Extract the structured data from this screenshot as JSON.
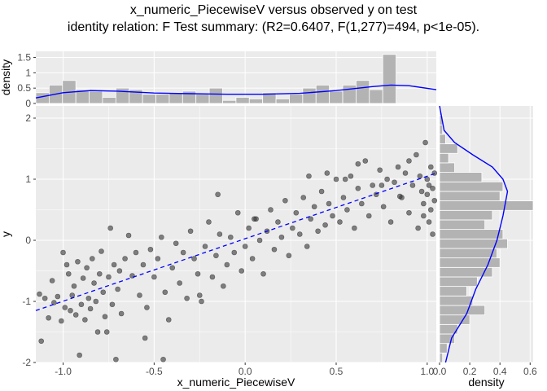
{
  "title": "x_numeric_PiecewiseV versus observed y on test",
  "subtitle": "identity relation: F Test summary: (R2=0.6407, F(1,277)=494, p<1e-05).",
  "chart_data": {
    "type": "scatter",
    "xlabel": "x_numeric_PiecewiseV",
    "ylabel": "y",
    "xlim": [
      -1.15,
      1.05
    ],
    "ylim": [
      -2.0,
      2.2
    ],
    "x_ticks": [
      {
        "v": -1.0,
        "label": "-1.0"
      },
      {
        "v": -0.5,
        "label": "-0.5"
      },
      {
        "v": 0.0,
        "label": "0.0"
      },
      {
        "v": 0.5,
        "label": "0.5"
      },
      {
        "v": 1.0,
        "label": "1.0"
      }
    ],
    "y_ticks": [
      {
        "v": -2,
        "label": "-2"
      },
      {
        "v": -1,
        "label": "-1"
      },
      {
        "v": 0,
        "label": "0"
      },
      {
        "v": 1,
        "label": "1"
      },
      {
        "v": 2,
        "label": "2"
      }
    ],
    "fit_line": {
      "x": [
        -1.15,
        1.05
      ],
      "y": [
        -1.15,
        1.1
      ],
      "color": "#0000ff",
      "style": "dashed"
    },
    "point_color": "#333333",
    "top_density": {
      "ylabel": "density",
      "ylim": [
        0,
        1.7
      ],
      "y_ticks": [
        {
          "v": 0,
          "label": "0"
        },
        {
          "v": 0.5,
          "label": "0.5"
        },
        {
          "v": 1.0,
          "label": "1"
        },
        {
          "v": 1.5,
          "label": "1.5"
        }
      ],
      "bin_start": -1.15,
      "bin_width": 0.0733,
      "counts": [
        0.35,
        0.6,
        0.75,
        0.45,
        0.4,
        0.2,
        0.5,
        0.45,
        0.3,
        0.3,
        0.35,
        0.4,
        0.3,
        0.5,
        0.1,
        0.2,
        0.15,
        0.35,
        0.15,
        0.3,
        0.5,
        0.6,
        0.4,
        0.6,
        0.75,
        0.45,
        1.6
      ],
      "curve": [
        [
          -1.15,
          0.18
        ],
        [
          -1.0,
          0.35
        ],
        [
          -0.85,
          0.42
        ],
        [
          -0.7,
          0.4
        ],
        [
          -0.5,
          0.34
        ],
        [
          -0.3,
          0.32
        ],
        [
          -0.1,
          0.3
        ],
        [
          0.1,
          0.3
        ],
        [
          0.3,
          0.33
        ],
        [
          0.5,
          0.42
        ],
        [
          0.7,
          0.55
        ],
        [
          0.8,
          0.6
        ],
        [
          0.9,
          0.58
        ],
        [
          1.05,
          0.45
        ]
      ],
      "color": "#0000ff"
    },
    "right_density": {
      "xlabel": "density",
      "xlim": [
        0,
        0.62
      ],
      "x_ticks": [
        {
          "v": 0,
          "label": "0.0"
        },
        {
          "v": 0.2,
          "label": "0.2"
        },
        {
          "v": 0.4,
          "label": "0.4"
        },
        {
          "v": 0.6,
          "label": "0.6"
        }
      ],
      "bin_start": -2.0,
      "bin_width": 0.1556,
      "counts": [
        0.02,
        0.05,
        0.1,
        0.12,
        0.2,
        0.3,
        0.22,
        0.18,
        0.25,
        0.35,
        0.4,
        0.38,
        0.45,
        0.42,
        0.3,
        0.35,
        0.62,
        0.4,
        0.42,
        0.28,
        0.1,
        0.06,
        0.12,
        0.04,
        0.02,
        0.02,
        0.01
      ],
      "curve": [
        [
          -2.0,
          0.04
        ],
        [
          -1.6,
          0.08
        ],
        [
          -1.2,
          0.18
        ],
        [
          -0.8,
          0.24
        ],
        [
          -0.4,
          0.32
        ],
        [
          0.0,
          0.38
        ],
        [
          0.4,
          0.42
        ],
        [
          0.8,
          0.45
        ],
        [
          1.0,
          0.42
        ],
        [
          1.2,
          0.35
        ],
        [
          1.4,
          0.22
        ],
        [
          1.6,
          0.1
        ],
        [
          1.8,
          0.03
        ],
        [
          2.2,
          0.0
        ]
      ],
      "color": "#0000ff"
    },
    "points": [
      [
        -1.13,
        -0.88
      ],
      [
        -1.12,
        -1.65
      ],
      [
        -1.1,
        -0.95
      ],
      [
        -1.08,
        -1.27
      ],
      [
        -1.06,
        -0.66
      ],
      [
        -1.05,
        -1.02
      ],
      [
        -1.03,
        -0.92
      ],
      [
        -1.01,
        -1.32
      ],
      [
        -1.0,
        -0.2
      ],
      [
        -0.99,
        -1.1
      ],
      [
        -0.98,
        -0.4
      ],
      [
        -0.97,
        -0.55
      ],
      [
        -0.96,
        -1.15
      ],
      [
        -0.95,
        -0.9
      ],
      [
        -0.94,
        -0.75
      ],
      [
        -0.93,
        -1.22
      ],
      [
        -0.92,
        -0.35
      ],
      [
        -0.91,
        -1.88
      ],
      [
        -0.9,
        -1.05
      ],
      [
        -0.89,
        -0.62
      ],
      [
        -0.88,
        -1.3
      ],
      [
        -0.87,
        -0.45
      ],
      [
        -0.86,
        -0.95
      ],
      [
        -0.85,
        -1.12
      ],
      [
        -0.84,
        -0.3
      ],
      [
        -0.83,
        -0.7
      ],
      [
        -0.82,
        -1.0
      ],
      [
        -0.81,
        -1.5
      ],
      [
        -0.8,
        -0.55
      ],
      [
        -0.79,
        -0.18
      ],
      [
        -0.78,
        -0.85
      ],
      [
        -0.77,
        -1.25
      ],
      [
        -0.76,
        -1.5
      ],
      [
        -0.75,
        -0.6
      ],
      [
        -0.74,
        0.2
      ],
      [
        -0.73,
        -1.05
      ],
      [
        -0.72,
        -0.4
      ],
      [
        -0.71,
        -1.95
      ],
      [
        -0.7,
        -0.8
      ],
      [
        -0.69,
        -0.5
      ],
      [
        -0.68,
        -1.2
      ],
      [
        -0.66,
        -0.3
      ],
      [
        -0.64,
        0.08
      ],
      [
        -0.62,
        -0.58
      ],
      [
        -0.6,
        -0.2
      ],
      [
        -0.58,
        -0.9
      ],
      [
        -0.56,
        -0.4
      ],
      [
        -0.54,
        -1.1
      ],
      [
        -0.52,
        -0.15
      ],
      [
        -0.5,
        -0.6
      ],
      [
        -0.48,
        -0.3
      ],
      [
        -0.46,
        0.05
      ],
      [
        -0.44,
        -0.85
      ],
      [
        -0.42,
        -1.3
      ],
      [
        -0.4,
        -0.45
      ],
      [
        -0.38,
        -0.05
      ],
      [
        -0.36,
        -0.7
      ],
      [
        -0.34,
        -0.2
      ],
      [
        -0.32,
        -0.95
      ],
      [
        -0.3,
        0.15
      ],
      [
        -0.28,
        -0.3
      ],
      [
        -0.26,
        -0.55
      ],
      [
        -0.24,
        -1.0
      ],
      [
        -0.22,
        -0.1
      ],
      [
        -0.2,
        0.3
      ],
      [
        -0.18,
        -0.6
      ],
      [
        -0.16,
        -0.25
      ],
      [
        -0.14,
        0.1
      ],
      [
        -0.12,
        -0.75
      ],
      [
        -0.1,
        -0.4
      ],
      [
        -0.08,
        0.05
      ],
      [
        -0.06,
        -0.2
      ],
      [
        -0.04,
        0.45
      ],
      [
        -0.02,
        -0.5
      ],
      [
        0.0,
        -0.1
      ],
      [
        0.02,
        0.2
      ],
      [
        0.04,
        -0.3
      ],
      [
        0.06,
        0.35
      ],
      [
        0.08,
        0.0
      ],
      [
        0.1,
        -0.55
      ],
      [
        0.12,
        0.15
      ],
      [
        0.14,
        0.5
      ],
      [
        0.16,
        -0.15
      ],
      [
        0.18,
        0.3
      ],
      [
        0.2,
        0.05
      ],
      [
        0.22,
        0.65
      ],
      [
        0.24,
        -0.25
      ],
      [
        0.26,
        0.2
      ],
      [
        0.28,
        0.45
      ],
      [
        0.3,
        0.1
      ],
      [
        0.32,
        0.7
      ],
      [
        0.34,
        -0.1
      ],
      [
        0.36,
        0.35
      ],
      [
        0.38,
        0.55
      ],
      [
        0.4,
        0.15
      ],
      [
        0.42,
        0.8
      ],
      [
        0.44,
        0.25
      ],
      [
        0.46,
        0.6
      ],
      [
        0.48,
        0.4
      ],
      [
        0.5,
        1.0
      ],
      [
        0.52,
        0.3
      ],
      [
        0.54,
        0.7
      ],
      [
        0.56,
        0.5
      ],
      [
        0.58,
        1.05
      ],
      [
        0.6,
        0.2
      ],
      [
        0.62,
        0.85
      ],
      [
        0.64,
        0.6
      ],
      [
        0.66,
        1.3
      ],
      [
        0.68,
        0.4
      ],
      [
        0.7,
        0.9
      ],
      [
        0.72,
        0.75
      ],
      [
        0.74,
        1.15
      ],
      [
        0.76,
        0.55
      ],
      [
        0.78,
        1.0
      ],
      [
        0.8,
        0.3
      ],
      [
        0.82,
        0.95
      ],
      [
        0.84,
        1.2
      ],
      [
        0.86,
        0.7
      ],
      [
        0.88,
        1.1
      ],
      [
        0.9,
        0.45
      ],
      [
        0.92,
        0.9
      ],
      [
        0.94,
        1.4
      ],
      [
        0.95,
        0.2
      ],
      [
        0.96,
        1.05
      ],
      [
        0.97,
        0.8
      ],
      [
        0.98,
        0.6
      ],
      [
        0.99,
        1.6
      ],
      [
        1.0,
        0.75
      ],
      [
        1.0,
        1.0
      ],
      [
        1.01,
        0.3
      ],
      [
        1.01,
        0.9
      ],
      [
        1.02,
        1.2
      ],
      [
        1.02,
        0.5
      ],
      [
        1.03,
        0.1
      ],
      [
        1.03,
        0.85
      ],
      [
        1.04,
        1.1
      ],
      [
        1.04,
        0.65
      ],
      [
        0.85,
        0.72
      ],
      [
        0.62,
        1.25
      ],
      [
        0.55,
        1.0
      ],
      [
        -0.25,
        -0.9
      ],
      [
        -0.15,
        0.75
      ],
      [
        0.05,
        0.35
      ],
      [
        -0.55,
        -1.6
      ],
      [
        -0.45,
        -1.95
      ],
      [
        0.35,
        1.05
      ],
      [
        0.45,
        1.1
      ],
      [
        0.75,
        0.9
      ],
      [
        0.9,
        1.3
      ],
      [
        0.98,
        0.4
      ]
    ]
  }
}
